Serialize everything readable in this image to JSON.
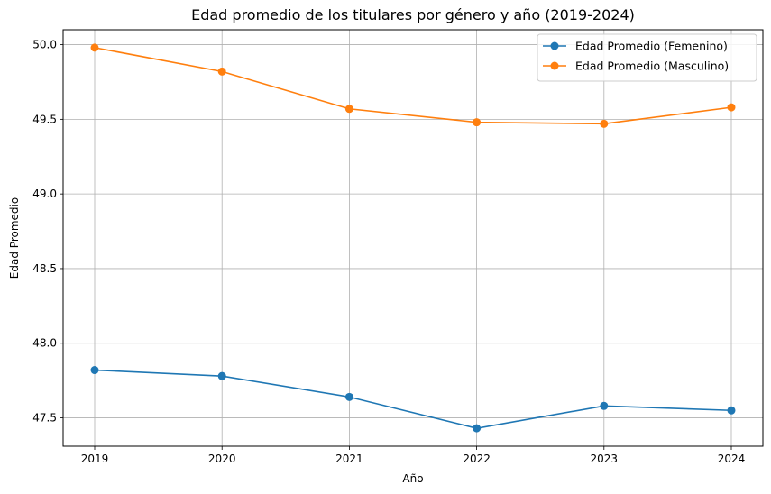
{
  "chart_data": {
    "type": "line",
    "title": "Edad promedio de los titulares por género y año (2019-2024)",
    "xlabel": "Año",
    "ylabel": "Edad Promedio",
    "categories": [
      "2019",
      "2020",
      "2021",
      "2022",
      "2023",
      "2024"
    ],
    "y_ticks": [
      "47.5",
      "48.0",
      "48.5",
      "49.0",
      "49.5",
      "50.0"
    ],
    "ylim": [
      47.31,
      50.1
    ],
    "grid": true,
    "legend_position": "top-right",
    "series": [
      {
        "name": "Edad Promedio (Femenino)",
        "color": "#1f77b4",
        "values": [
          47.82,
          47.78,
          47.64,
          47.43,
          47.58,
          47.55
        ]
      },
      {
        "name": "Edad Promedio (Masculino)",
        "color": "#ff7f0e",
        "values": [
          49.98,
          49.82,
          49.57,
          49.48,
          49.47,
          49.58
        ]
      }
    ]
  }
}
